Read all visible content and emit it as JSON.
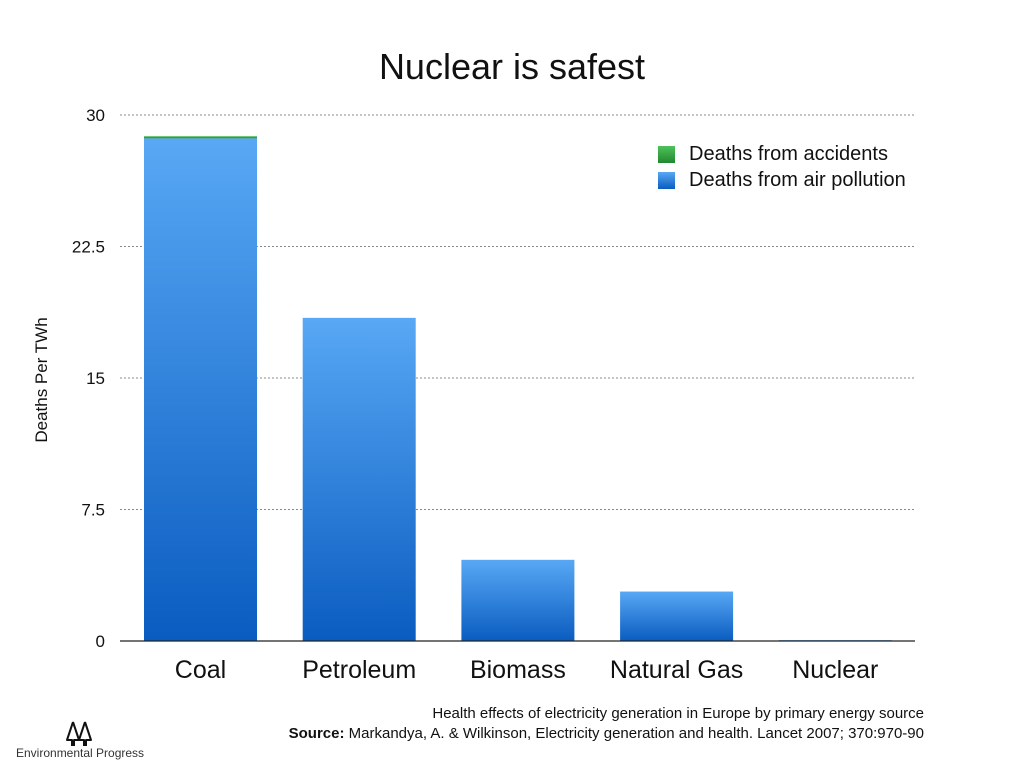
{
  "chart_data": {
    "type": "bar",
    "stacked": true,
    "title": "Nuclear is safest",
    "ylabel": "Deaths Per TWh",
    "xlabel": "",
    "ylim": [
      0,
      30
    ],
    "yticks": [
      "0",
      "7.5",
      "15",
      "22.5",
      "30"
    ],
    "grid": true,
    "legend_position": "top-right",
    "categories": [
      "Coal",
      "Petroleum",
      "Biomass",
      "Natural Gas",
      "Nuclear"
    ],
    "series": [
      {
        "name": "Deaths from air pollution",
        "values": [
          28.67,
          18.43,
          4.63,
          2.82,
          0.05
        ],
        "color": "#1a6fd6"
      },
      {
        "name": "Deaths from accidents",
        "values": [
          0.12,
          0.0,
          0.0,
          0.0,
          0.0
        ],
        "color": "#2e9e3e"
      }
    ]
  },
  "legend": {
    "accidents": "Deaths from accidents",
    "air_pollution": "Deaths from air pollution"
  },
  "caption": {
    "line1": "Health effects of electricity generation in Europe by primary energy source",
    "source_label": "Source:",
    "source_text": "Markandya, A. & Wilkinson, Electricity generation and health. Lancet 2007; 370:970-90"
  },
  "logo": {
    "text": "Environmental Progress",
    "icon": "trees-icon"
  }
}
